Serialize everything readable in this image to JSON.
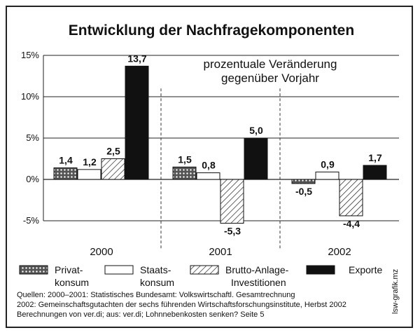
{
  "chart_data": {
    "type": "bar",
    "title": "Entwicklung der Nachfragekomponenten",
    "subtitle_line1": "prozentuale Veränderung",
    "subtitle_line2": "gegenüber Vorjahr",
    "categories": [
      "2000",
      "2001",
      "2002"
    ],
    "y_ticks": [
      "15%",
      "10%",
      "5%",
      "0%",
      "-5%"
    ],
    "y_tick_values": [
      15,
      10,
      5,
      0,
      -5
    ],
    "ylim": [
      -6,
      15
    ],
    "grid": true,
    "legend_position": "bottom",
    "series": [
      {
        "name": "Privat-\nkonsum",
        "name_line1": "Privat-",
        "name_line2": "konsum",
        "pattern": "dots",
        "values": [
          1.4,
          1.5,
          -0.5
        ],
        "labels": [
          "1,4",
          "1,5",
          "-0,5"
        ]
      },
      {
        "name": "Staats-\nkonsum",
        "name_line1": "Staats-",
        "name_line2": "konsum",
        "pattern": "white",
        "values": [
          1.2,
          0.8,
          0.9
        ],
        "labels": [
          "1,2",
          "0,8",
          "0,9"
        ]
      },
      {
        "name": "Brutto-Anlage-\nInvestitionen",
        "name_line1": "Brutto-Anlage-",
        "name_line2": "Investitionen",
        "pattern": "hatch",
        "values": [
          2.5,
          -5.3,
          -4.4
        ],
        "labels": [
          "2,5",
          "-5,3",
          "-4,4"
        ]
      },
      {
        "name": "Exporte",
        "name_line1": "Exporte",
        "name_line2": "",
        "pattern": "black",
        "values": [
          13.7,
          5.0,
          1.7
        ],
        "labels": [
          "13,7",
          "5,0",
          "1,7"
        ]
      }
    ],
    "colors": {
      "fill_black": "#111111",
      "fill_white": "#ffffff",
      "stroke": "#111111",
      "dots": "#333333"
    }
  },
  "sources": {
    "line1": "Quellen: 2000–2001: Statistisches Bundesamt: Volkswirtschaftl. Gesamtrechnung",
    "line2": "2002: Gemeinschaftsgutachten der sechs führenden Wirtschaftsforschungsinstitute, Herbst 2002",
    "line3": "Berechnungen von ver.di; aus: ver.di; Lohnnebenkosten senken? Seite 5"
  },
  "credit": "lsw-grafik.mz"
}
